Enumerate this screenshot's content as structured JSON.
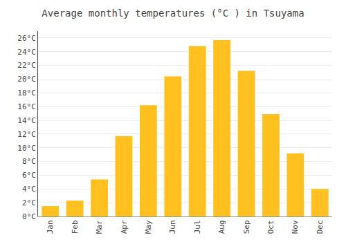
{
  "chart_data": {
    "type": "bar",
    "title": "Average monthly temperatures (°C ) in Tsuyama",
    "categories": [
      "Jan",
      "Feb",
      "Mar",
      "Apr",
      "May",
      "Jun",
      "Jul",
      "Aug",
      "Sep",
      "Oct",
      "Nov",
      "Dec"
    ],
    "values": [
      1.5,
      2.3,
      5.4,
      11.7,
      16.2,
      20.4,
      24.8,
      25.7,
      21.2,
      14.9,
      9.2,
      4.0
    ],
    "color": "#FFC020",
    "ylim": [
      0,
      27
    ],
    "yticks": [
      {
        "value": 0,
        "label": "0°C"
      },
      {
        "value": 2,
        "label": "2°C"
      },
      {
        "value": 4,
        "label": "4°C"
      },
      {
        "value": 6,
        "label": "6°C"
      },
      {
        "value": 8,
        "label": "8°C"
      },
      {
        "value": 10,
        "label": "10°C"
      },
      {
        "value": 12,
        "label": "12°C"
      },
      {
        "value": 14,
        "label": "14°C"
      },
      {
        "value": 16,
        "label": "16°C"
      },
      {
        "value": 18,
        "label": "18°C"
      },
      {
        "value": 20,
        "label": "20°C"
      },
      {
        "value": 22,
        "label": "22°C"
      },
      {
        "value": 24,
        "label": "24°C"
      },
      {
        "value": 26,
        "label": "26°C"
      }
    ],
    "grid": true
  }
}
